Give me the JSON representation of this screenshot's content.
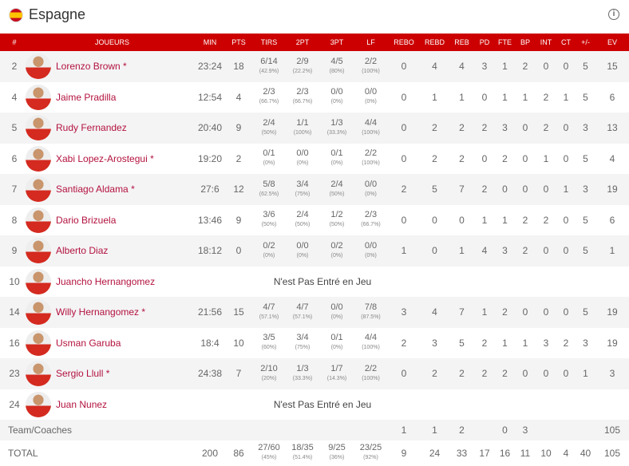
{
  "header": {
    "title": "Espagne",
    "flag_icon": "spain-flag-icon",
    "info_icon": "info-icon",
    "accent": "#cc0000"
  },
  "columns": [
    "#",
    "JOUEURS",
    "MIN",
    "PTS",
    "TIRS",
    "2PT",
    "3PT",
    "LF",
    "REBO",
    "REBD",
    "REB",
    "PD",
    "FTE",
    "BP",
    "INT",
    "CT",
    "+/-",
    "EV"
  ],
  "dnp_text": "N'est Pas Entré en Jeu",
  "players": [
    {
      "num": "2",
      "name": "Lorenzo Brown *",
      "min": "23:24",
      "pts": "18",
      "tirs": [
        "6/14",
        "(42.9%)"
      ],
      "p2": [
        "2/9",
        "(22.2%)"
      ],
      "p3": [
        "4/5",
        "(80%)"
      ],
      "lf": [
        "2/2",
        "(100%)"
      ],
      "rest": [
        "0",
        "4",
        "4",
        "3",
        "1",
        "2",
        "0",
        "0",
        "5",
        "15"
      ]
    },
    {
      "num": "4",
      "name": "Jaime Pradilla",
      "min": "12:54",
      "pts": "4",
      "tirs": [
        "2/3",
        "(66.7%)"
      ],
      "p2": [
        "2/3",
        "(66.7%)"
      ],
      "p3": [
        "0/0",
        "(0%)"
      ],
      "lf": [
        "0/0",
        "(0%)"
      ],
      "rest": [
        "0",
        "1",
        "1",
        "0",
        "1",
        "1",
        "2",
        "1",
        "5",
        "6"
      ]
    },
    {
      "num": "5",
      "name": "Rudy Fernandez",
      "min": "20:40",
      "pts": "9",
      "tirs": [
        "2/4",
        "(50%)"
      ],
      "p2": [
        "1/1",
        "(100%)"
      ],
      "p3": [
        "1/3",
        "(33.3%)"
      ],
      "lf": [
        "4/4",
        "(100%)"
      ],
      "rest": [
        "0",
        "2",
        "2",
        "2",
        "3",
        "0",
        "2",
        "0",
        "3",
        "13"
      ]
    },
    {
      "num": "6",
      "name": "Xabi Lopez-Arostegui *",
      "min": "19:20",
      "pts": "2",
      "tirs": [
        "0/1",
        "(0%)"
      ],
      "p2": [
        "0/0",
        "(0%)"
      ],
      "p3": [
        "0/1",
        "(0%)"
      ],
      "lf": [
        "2/2",
        "(100%)"
      ],
      "rest": [
        "0",
        "2",
        "2",
        "0",
        "2",
        "0",
        "1",
        "0",
        "5",
        "4"
      ]
    },
    {
      "num": "7",
      "name": "Santiago Aldama *",
      "min": "27:6",
      "pts": "12",
      "tirs": [
        "5/8",
        "(62.5%)"
      ],
      "p2": [
        "3/4",
        "(75%)"
      ],
      "p3": [
        "2/4",
        "(50%)"
      ],
      "lf": [
        "0/0",
        "(0%)"
      ],
      "rest": [
        "2",
        "5",
        "7",
        "2",
        "0",
        "0",
        "0",
        "1",
        "3",
        "19"
      ]
    },
    {
      "num": "8",
      "name": "Dario Brizuela",
      "min": "13:46",
      "pts": "9",
      "tirs": [
        "3/6",
        "(50%)"
      ],
      "p2": [
        "2/4",
        "(50%)"
      ],
      "p3": [
        "1/2",
        "(50%)"
      ],
      "lf": [
        "2/3",
        "(66.7%)"
      ],
      "rest": [
        "0",
        "0",
        "0",
        "1",
        "1",
        "2",
        "2",
        "0",
        "5",
        "6"
      ]
    },
    {
      "num": "9",
      "name": "Alberto Diaz",
      "min": "18:12",
      "pts": "0",
      "tirs": [
        "0/2",
        "(0%)"
      ],
      "p2": [
        "0/0",
        "(0%)"
      ],
      "p3": [
        "0/2",
        "(0%)"
      ],
      "lf": [
        "0/0",
        "(0%)"
      ],
      "rest": [
        "1",
        "0",
        "1",
        "4",
        "3",
        "2",
        "0",
        "0",
        "5",
        "1"
      ]
    },
    {
      "num": "10",
      "name": "Juancho Hernangomez",
      "dnp": true
    },
    {
      "num": "14",
      "name": "Willy Hernangomez *",
      "min": "21:56",
      "pts": "15",
      "tirs": [
        "4/7",
        "(57.1%)"
      ],
      "p2": [
        "4/7",
        "(57.1%)"
      ],
      "p3": [
        "0/0",
        "(0%)"
      ],
      "lf": [
        "7/8",
        "(87.5%)"
      ],
      "rest": [
        "3",
        "4",
        "7",
        "1",
        "2",
        "0",
        "0",
        "0",
        "5",
        "19"
      ]
    },
    {
      "num": "16",
      "name": "Usman Garuba",
      "min": "18:4",
      "pts": "10",
      "tirs": [
        "3/5",
        "(60%)"
      ],
      "p2": [
        "3/4",
        "(75%)"
      ],
      "p3": [
        "0/1",
        "(0%)"
      ],
      "lf": [
        "4/4",
        "(100%)"
      ],
      "rest": [
        "2",
        "3",
        "5",
        "2",
        "1",
        "1",
        "3",
        "2",
        "3",
        "19"
      ]
    },
    {
      "num": "23",
      "name": "Sergio Llull *",
      "min": "24:38",
      "pts": "7",
      "tirs": [
        "2/10",
        "(20%)"
      ],
      "p2": [
        "1/3",
        "(33.3%)"
      ],
      "p3": [
        "1/7",
        "(14.3%)"
      ],
      "lf": [
        "2/2",
        "(100%)"
      ],
      "rest": [
        "0",
        "2",
        "2",
        "2",
        "2",
        "0",
        "0",
        "0",
        "1",
        "3"
      ]
    },
    {
      "num": "24",
      "name": "Juan Nunez",
      "dnp": true
    }
  ],
  "team": {
    "label": "Team/Coaches",
    "rest": [
      "1",
      "1",
      "2",
      "",
      "0",
      "3",
      "",
      "",
      "",
      "105"
    ]
  },
  "total": {
    "label": "TOTAL",
    "min": "200",
    "pts": "86",
    "tirs": [
      "27/60",
      "(45%)"
    ],
    "p2": [
      "18/35",
      "(51.4%)"
    ],
    "p3": [
      "9/25",
      "(36%)"
    ],
    "lf": [
      "23/25",
      "(92%)"
    ],
    "rest": [
      "9",
      "24",
      "33",
      "17",
      "16",
      "11",
      "10",
      "4",
      "40",
      "105"
    ]
  }
}
